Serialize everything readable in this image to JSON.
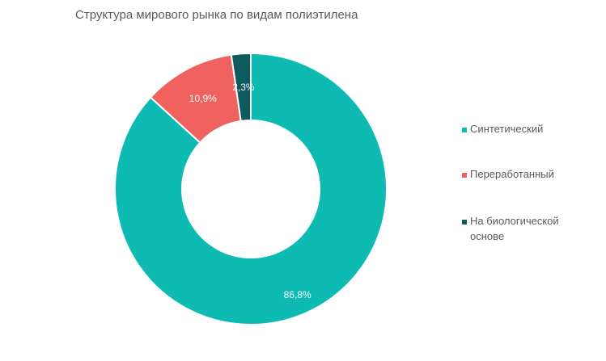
{
  "chart_data": {
    "type": "pie",
    "title": "Структура мирового рынка по видам полиэтилена",
    "categories": [
      "Синтетический",
      "Переработанный",
      "На биологической основе"
    ],
    "values": [
      86.8,
      10.9,
      2.3
    ],
    "value_labels": [
      "86,8%",
      "10,9%",
      "2,3%"
    ],
    "colors": [
      "#0ebbb3",
      "#f0625f",
      "#0d5b5f"
    ],
    "legend": {
      "position": "right"
    }
  }
}
